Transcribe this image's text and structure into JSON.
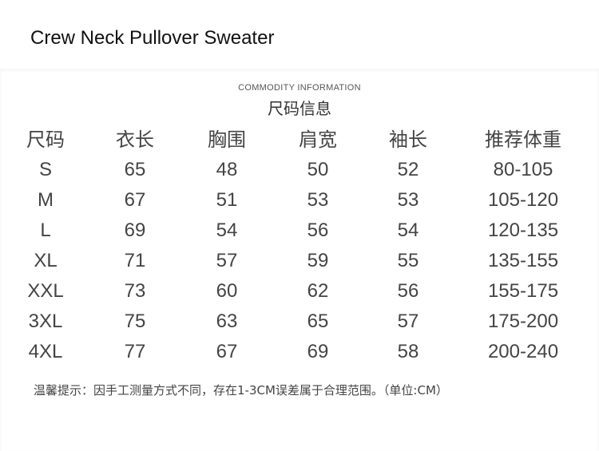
{
  "title": "Crew Neck Pullover Sweater",
  "chart": {
    "subtitle": "COMMODITY INFORMATION",
    "heading": "尺码信息",
    "columns": [
      "尺码",
      "衣长",
      "胸围",
      "肩宽",
      "袖长",
      "推荐体重"
    ],
    "rows": [
      [
        "S",
        "65",
        "48",
        "50",
        "52",
        "80-105"
      ],
      [
        "M",
        "67",
        "51",
        "53",
        "53",
        "105-120"
      ],
      [
        "L",
        "69",
        "54",
        "56",
        "54",
        "120-135"
      ],
      [
        "XL",
        "71",
        "57",
        "59",
        "55",
        "135-155"
      ],
      [
        "XXL",
        "73",
        "60",
        "62",
        "56",
        "155-175"
      ],
      [
        "3XL",
        "75",
        "63",
        "65",
        "57",
        "175-200"
      ],
      [
        "4XL",
        "77",
        "67",
        "69",
        "58",
        "200-240"
      ]
    ],
    "note": "温馨提示：因手工测量方式不同，存在1-3CM误差属于合理范围。（单位:CM）"
  }
}
